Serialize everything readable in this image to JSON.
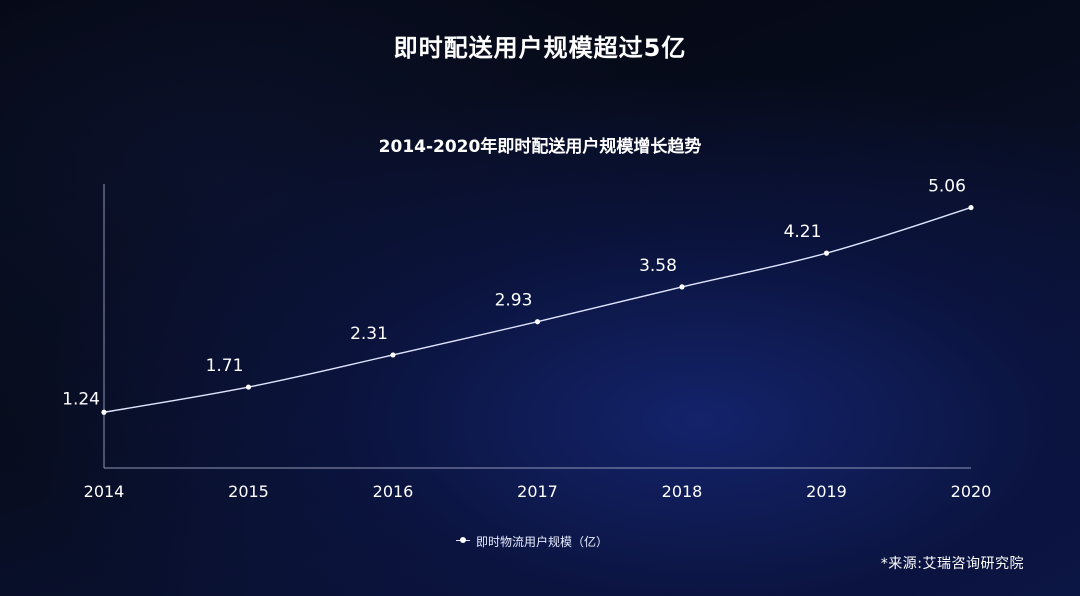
{
  "header": {
    "main_title": "即时配送用户规模超过5亿"
  },
  "chart_data": {
    "type": "line",
    "title": "2014-2020年即时配送用户规模增长趋势",
    "categories": [
      "2014",
      "2015",
      "2016",
      "2017",
      "2018",
      "2019",
      "2020"
    ],
    "series": [
      {
        "name": "即时物流用户规模（亿）",
        "values": [
          1.24,
          1.71,
          2.31,
          2.93,
          3.58,
          4.21,
          5.06
        ]
      }
    ],
    "data_labels": [
      "1.24",
      "1.71",
      "2.31",
      "2.93",
      "3.58",
      "4.21",
      "5.06"
    ],
    "xlabel": "",
    "ylabel": "",
    "ylim": [
      0.2,
      5.5
    ],
    "grid": false,
    "legend_position": "bottom-center",
    "colors": {
      "line": "#dfe5ff",
      "marker": "#ffffff",
      "axis": "#8f96b4",
      "text": "#ffffff"
    }
  },
  "footer": {
    "source": "*来源:艾瑞咨询研究院"
  }
}
